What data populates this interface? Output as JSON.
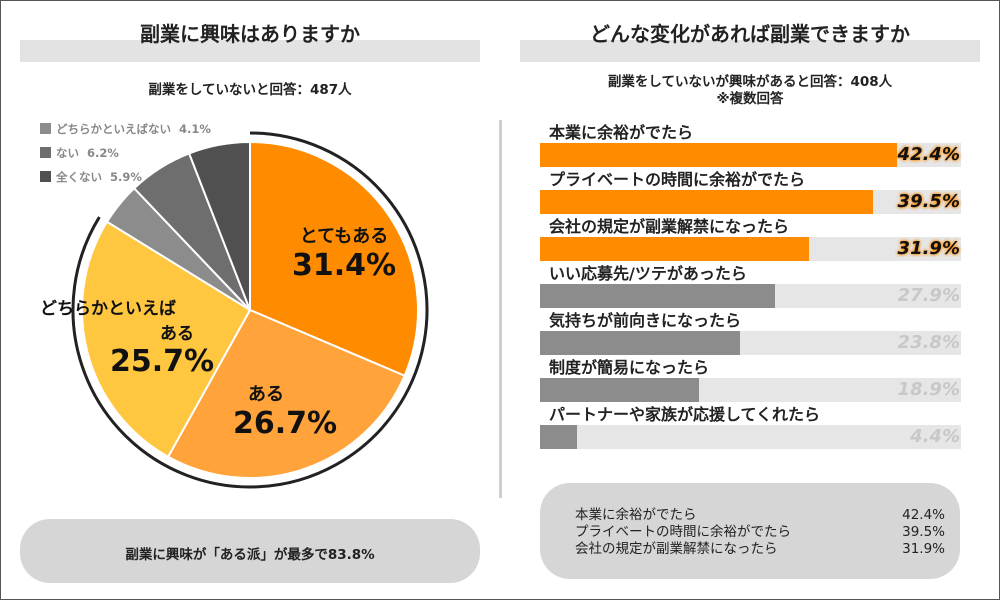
{
  "left": {
    "title": "副業に興味はありますか",
    "subtitle": "副業をしていないと回答：487人",
    "summary": "副業に興味が「ある派」が最多で83.8%"
  },
  "right": {
    "title": "どんな変化があれば副業できますか",
    "subtitle_line1": "副業をしていないが興味があると回答：408人",
    "subtitle_line2": "※複数回答",
    "summary": [
      {
        "label": "本業に余裕がでたら",
        "value": "42.4%"
      },
      {
        "label": "プライベートの時間に余裕がでたら",
        "value": "39.5%"
      },
      {
        "label": "会社の規定が副業解禁になったら",
        "value": "31.9%"
      }
    ]
  },
  "chart_data": [
    {
      "type": "pie",
      "title": "副業に興味はありますか",
      "series": [
        {
          "name": "とてもある",
          "value": 31.4,
          "label": "31.4%",
          "color": "#ff8c00"
        },
        {
          "name": "ある",
          "value": 26.7,
          "label": "26.7%",
          "color": "#ffa33a"
        },
        {
          "name": "どちらかといえばある",
          "name_line1": "どちらかといえば",
          "name_line2": "ある",
          "value": 25.7,
          "label": "25.7%",
          "color": "#ffc640"
        },
        {
          "name": "どちらかといえばない",
          "value": 4.1,
          "label": "4.1%",
          "color": "#8c8c8c"
        },
        {
          "name": "ない",
          "value": 6.2,
          "label": "6.2%",
          "color": "#6e6e6e"
        },
        {
          "name": "全くない",
          "value": 5.9,
          "label": "5.9%",
          "color": "#505050"
        }
      ]
    },
    {
      "type": "bar",
      "title": "どんな変化があれば副業できますか",
      "xlim": [
        0,
        50
      ],
      "categories": [
        "本業に余裕がでたら",
        "プライベートの時間に余裕がでたら",
        "会社の規定が副業解禁になったら",
        "いい応募先/ツテがあったら",
        "気持ちが前向きになったら",
        "制度が簡易になったら",
        "パートナーや家族が応援してくれたら"
      ],
      "values": [
        42.4,
        39.5,
        31.9,
        27.9,
        23.8,
        18.9,
        4.4
      ],
      "labels": [
        "42.4%",
        "39.5%",
        "31.9%",
        "27.9%",
        "23.8%",
        "18.9%",
        "4.4%"
      ],
      "colors": [
        "#ff8c00",
        "#ff8c00",
        "#ff8c00",
        "#8c8c8c",
        "#8c8c8c",
        "#8c8c8c",
        "#8c8c8c"
      ],
      "value_colors": [
        "#111111",
        "#111111",
        "#111111",
        "#c8c8c8",
        "#c8c8c8",
        "#c8c8c8",
        "#c8c8c8"
      ]
    }
  ]
}
